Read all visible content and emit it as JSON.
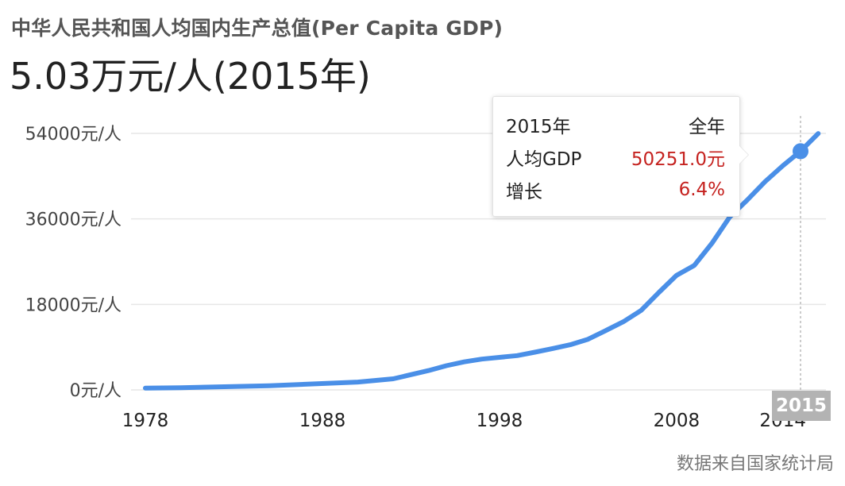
{
  "subtitle": "中华人民共和国人均国内生产总值(Per Capita GDP)",
  "headline": "5.03万元/人(2015年)",
  "tooltip": {
    "year": "2015年",
    "period": "全年",
    "metric_label": "人均GDP",
    "metric_value": "50251.0元",
    "growth_label": "增长",
    "growth_value": "6.4%"
  },
  "highlight_year": "2015",
  "source": "数据来自国家统计局",
  "colors": {
    "line": "#4a8fe7",
    "tooltip_value": "#c5221f"
  },
  "chart_data": {
    "type": "line",
    "title": "",
    "xlabel": "",
    "ylabel": "",
    "x_ticks": [
      1978,
      1988,
      1998,
      2008,
      2014
    ],
    "x_tick_labels": [
      "1978",
      "1988",
      "1998",
      "2008",
      "2014"
    ],
    "y_ticks": [
      0,
      18000,
      36000,
      54000
    ],
    "y_tick_labels": [
      "0元/人",
      "18000元/人",
      "36000元/人",
      "54000元/人"
    ],
    "xlim": [
      1978,
      2016
    ],
    "ylim": [
      0,
      54000
    ],
    "grid": true,
    "series": [
      {
        "name": "人均GDP",
        "x": [
          1978,
          1980,
          1985,
          1990,
          1992,
          1994,
          1995,
          1996,
          1997,
          1998,
          1999,
          2000,
          2001,
          2002,
          2003,
          2004,
          2005,
          2006,
          2007,
          2008,
          2009,
          2010,
          2011,
          2012,
          2013,
          2014,
          2015,
          2016
        ],
        "values": [
          385,
          468,
          866,
          1663,
          2334,
          4081,
          5091,
          5898,
          6481,
          6860,
          7229,
          7942,
          8717,
          9506,
          10666,
          12487,
          14368,
          16738,
          20505,
          24121,
          26222,
          30876,
          36403,
          40007,
          43852,
          47203,
          50251,
          53980
        ]
      }
    ],
    "highlight": {
      "x": 2015,
      "y": 50251.0,
      "growth": "6.4%"
    }
  }
}
